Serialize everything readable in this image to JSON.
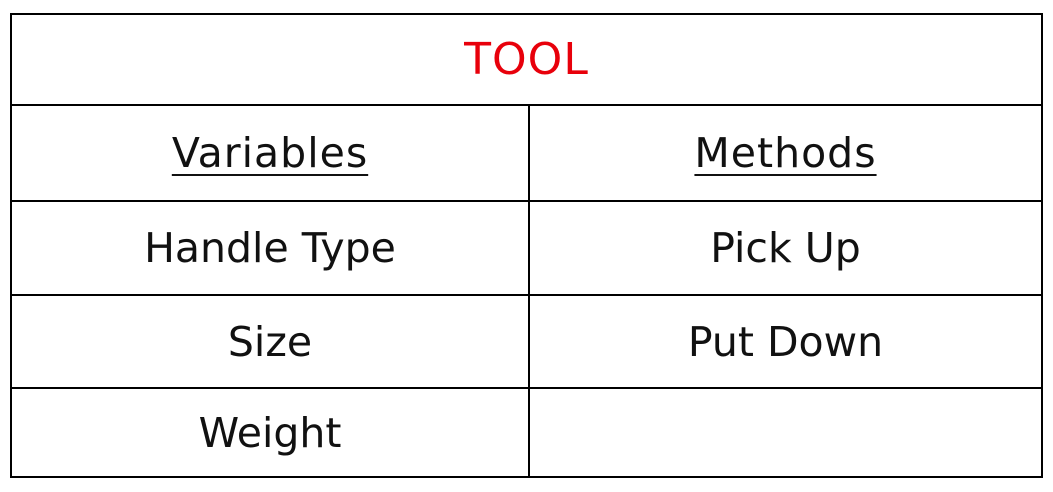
{
  "table": {
    "title": "TOOL",
    "title_color": "#e8000b",
    "headers": {
      "left": "Variables",
      "right": "Methods"
    },
    "rows": [
      {
        "variable": "Handle Type",
        "method": "Pick Up"
      },
      {
        "variable": "Size",
        "method": "Put Down"
      },
      {
        "variable": "Weight",
        "method": ""
      }
    ]
  }
}
